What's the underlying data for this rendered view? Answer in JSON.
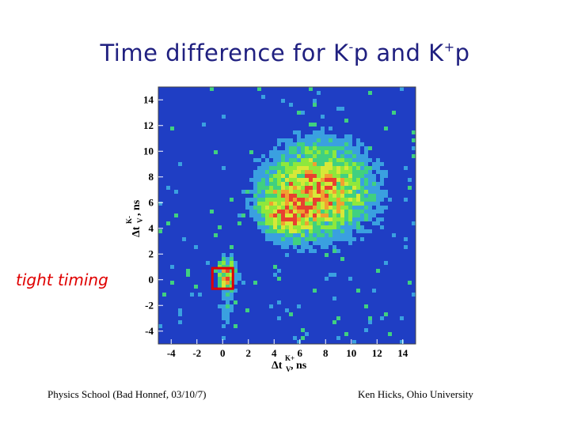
{
  "slide": {
    "title_main": "Time difference for K",
    "title_sup1": "-",
    "title_mid": "p and K",
    "title_sup2": "+",
    "title_end": "p",
    "annotation": "tight timing",
    "footer_left": "Physics School (Bad Honnef, 03/10/7)",
    "footer_right": "Ken Hicks, Ohio University"
  },
  "colors": {
    "background": "#1f3ec4",
    "title": "#202080",
    "annotation": "#e00000",
    "box": "#e00000"
  },
  "chart_data": {
    "type": "heatmap",
    "title": "",
    "xlabel": "Δt",
    "xlabel_sub": "V",
    "xlabel_sup": "K+",
    "xlabel_unit": ", ns",
    "ylabel": "Δt",
    "ylabel_sub": "V",
    "ylabel_sup": "K-",
    "ylabel_unit": ", ns",
    "xlim": [
      -5,
      15
    ],
    "ylim": [
      -5,
      15
    ],
    "xticks": [
      -4,
      -2,
      0,
      2,
      4,
      6,
      8,
      10,
      12,
      14
    ],
    "yticks": [
      -4,
      -2,
      0,
      2,
      4,
      6,
      8,
      10,
      12,
      14
    ],
    "colorscale": [
      "#1f3ec4",
      "#3aa0e0",
      "#40d080",
      "#8ee83c",
      "#d8e838",
      "#f0a030",
      "#e84030"
    ],
    "blobs": [
      {
        "cx": 7.5,
        "cy": 7.0,
        "sx": 3.0,
        "sy": 2.6,
        "amp": 1.0
      },
      {
        "cx": 4.8,
        "cy": 5.2,
        "sx": 1.3,
        "sy": 1.3,
        "amp": 0.55
      },
      {
        "cx": 0.3,
        "cy": 0.5,
        "sx": 0.6,
        "sy": 0.9,
        "amp": 0.75
      },
      {
        "cx": 0.3,
        "cy": -2.0,
        "sx": 0.4,
        "sy": 2.2,
        "amp": 0.3
      }
    ],
    "highlight_box": {
      "x0": -0.8,
      "x1": 0.8,
      "y0": -0.7,
      "y1": 0.9
    }
  }
}
